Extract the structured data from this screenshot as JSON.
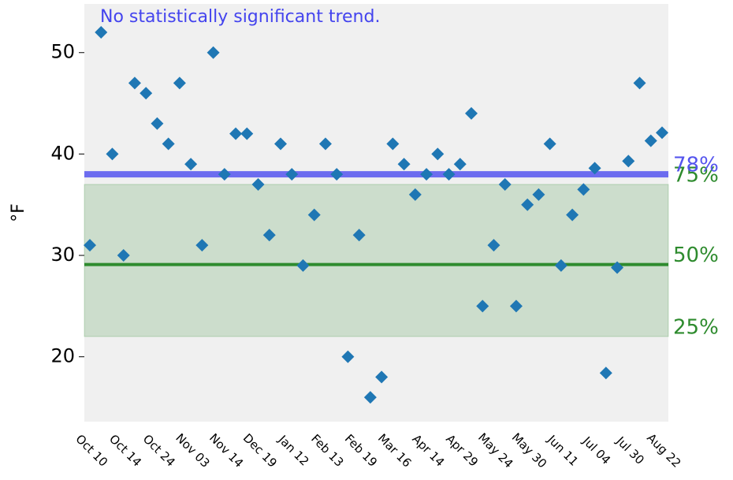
{
  "chart_data": {
    "type": "scatter",
    "annotation": "No statistically significant trend.",
    "ylabel": "°F",
    "categories": [
      "Oct 10",
      null,
      null,
      "Oct 14",
      null,
      null,
      "Oct 24",
      null,
      null,
      "Nov 03",
      null,
      null,
      "Nov 14",
      null,
      null,
      "Dec 19",
      null,
      null,
      "Jan 12",
      null,
      null,
      "Feb 13",
      null,
      null,
      "Feb 19",
      null,
      null,
      "Mar 16",
      null,
      null,
      "Apr 14",
      null,
      null,
      "Apr 29",
      null,
      null,
      "May 24",
      null,
      null,
      "May 30",
      null,
      null,
      "Jun 11",
      null,
      null,
      "Jul 04",
      null,
      null,
      "Jul 30",
      null,
      null,
      "Aug 22"
    ],
    "values": [
      31,
      52,
      40,
      30,
      47,
      46,
      43,
      41,
      47,
      39,
      31,
      50,
      38,
      42,
      42,
      37,
      32,
      41,
      38,
      29,
      34,
      41,
      38,
      20,
      32,
      16,
      18,
      41,
      39,
      36,
      38,
      40,
      38,
      39,
      44,
      25,
      31,
      37,
      25,
      35,
      36,
      41,
      29,
      34,
      36.5,
      38.6,
      18.4,
      28.8,
      39.3,
      47,
      41.3,
      42.1
    ],
    "color": "#1f77b4",
    "ylim": [
      13.6,
      54.8
    ],
    "yticks": [
      20,
      30,
      40,
      50
    ],
    "percentile_band": {
      "color": "#2e8b2e",
      "lines": [
        {
          "label": "25%",
          "value": 22
        },
        {
          "label": "50%",
          "value": 29.1
        },
        {
          "label": "75%",
          "value": 37
        }
      ]
    },
    "reference": {
      "label": "78%",
      "value": 38,
      "color": "#5555ee"
    }
  }
}
